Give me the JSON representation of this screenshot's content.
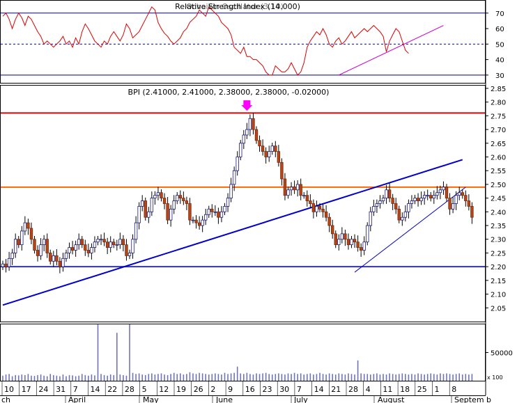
{
  "chart_data": [
    {
      "type": "line",
      "panel": "indicator",
      "title": "Relative Strength Index (14.000)",
      "title_overlay": "Ochaikin Oscillator (3,10)",
      "ylim": [
        25,
        78
      ],
      "yticks": [
        30,
        40,
        50,
        60,
        70
      ],
      "reference_lines": [
        {
          "value": 70,
          "color": "#000080",
          "style": "solid"
        },
        {
          "value": 50,
          "color": "#0000cc",
          "style": "dashed"
        },
        {
          "value": 30,
          "color": "#000080",
          "style": "solid"
        }
      ],
      "series": [
        {
          "color": "#dd0000",
          "values": [
            68,
            70,
            66,
            60,
            66,
            70,
            67,
            62,
            68,
            66,
            62,
            58,
            55,
            50,
            52,
            50,
            48,
            50,
            52,
            55,
            50,
            52,
            48,
            54,
            50,
            58,
            63,
            60,
            56,
            52,
            50,
            48,
            52,
            50,
            55,
            58,
            55,
            52,
            56,
            63,
            60,
            54,
            56,
            58,
            62,
            66,
            70,
            74,
            72,
            64,
            60,
            57,
            55,
            52,
            50,
            52,
            54,
            58,
            60,
            64,
            66,
            68,
            72,
            70,
            68,
            74,
            72,
            70,
            68,
            64,
            62,
            60,
            56,
            48,
            46,
            44,
            48,
            42,
            42,
            40,
            40,
            38,
            36,
            32,
            30,
            30,
            36,
            34,
            32,
            32,
            34,
            38,
            34,
            30,
            32,
            38,
            48,
            52,
            55,
            58,
            56,
            60,
            56,
            50,
            48,
            52,
            54,
            50,
            52,
            55,
            58,
            54,
            56,
            58,
            60,
            58,
            60,
            62,
            60,
            58,
            55,
            45,
            52,
            56,
            60,
            58,
            52,
            46,
            44
          ]
        }
      ],
      "trendlines": [
        {
          "from": [
            106,
            30
          ],
          "to": [
            139,
            62
          ],
          "color": "#cc00cc"
        }
      ],
      "grid": false
    },
    {
      "type": "candlestick",
      "panel": "price",
      "title": "BPI (2.41000, 2.41000, 2.38000, 2.38000, -0.02000)",
      "ylim": [
        2.0,
        2.86
      ],
      "yticks": [
        "2.05",
        "2.10",
        "2.15",
        "2.20",
        "2.25",
        "2.30",
        "2.35",
        "2.40",
        "2.45",
        "2.50",
        "2.55",
        "2.60",
        "2.65",
        "2.70",
        "2.75",
        "2.80",
        "2.85"
      ],
      "x_tick_labels": [
        "10",
        "17",
        "24",
        "31",
        "7",
        "14",
        "22",
        "28",
        "5",
        "12",
        "19",
        "26",
        "2",
        "9",
        "16",
        "23",
        "30",
        "7",
        "14",
        "21",
        "28",
        "4",
        "11",
        "18",
        "25",
        "1",
        "8"
      ],
      "month_labels": [
        "ch",
        "April",
        "May",
        "June",
        "July",
        "August",
        "Septem b"
      ],
      "horizontal_lines": [
        {
          "value": 2.76,
          "color": "#dd0000"
        },
        {
          "value": 2.49,
          "color": "#ff6600"
        },
        {
          "value": 2.2,
          "color": "#3333aa"
        }
      ],
      "trendlines": [
        {
          "from": [
            0,
            2.06
          ],
          "to": [
            145,
            2.59
          ],
          "color": "#0000cc",
          "width": 2
        },
        {
          "from": [
            111,
            2.18
          ],
          "to": [
            146,
            2.49
          ],
          "color": "#0000cc",
          "width": 1
        }
      ],
      "marker": {
        "symbol": "down-arrow",
        "color": "#ff00ff",
        "at_index": 77
      },
      "closes": [
        2.21,
        2.2,
        2.23,
        2.25,
        2.3,
        2.28,
        2.33,
        2.36,
        2.34,
        2.3,
        2.26,
        2.24,
        2.28,
        2.3,
        2.25,
        2.22,
        2.24,
        2.22,
        2.2,
        2.23,
        2.25,
        2.27,
        2.26,
        2.28,
        2.3,
        2.28,
        2.26,
        2.25,
        2.27,
        2.29,
        2.3,
        2.3,
        2.29,
        2.27,
        2.29,
        2.28,
        2.28,
        2.3,
        2.28,
        2.24,
        2.25,
        2.3,
        2.36,
        2.42,
        2.44,
        2.38,
        2.4,
        2.45,
        2.46,
        2.47,
        2.45,
        2.43,
        2.37,
        2.41,
        2.44,
        2.46,
        2.45,
        2.44,
        2.43,
        2.37,
        2.37,
        2.36,
        2.35,
        2.37,
        2.39,
        2.41,
        2.4,
        2.4,
        2.38,
        2.4,
        2.42,
        2.45,
        2.5,
        2.55,
        2.6,
        2.65,
        2.68,
        2.7,
        2.74,
        2.7,
        2.66,
        2.64,
        2.62,
        2.6,
        2.62,
        2.64,
        2.62,
        2.58,
        2.52,
        2.46,
        2.48,
        2.49,
        2.48,
        2.5,
        2.46,
        2.46,
        2.44,
        2.43,
        2.4,
        2.42,
        2.41,
        2.4,
        2.38,
        2.35,
        2.32,
        2.28,
        2.3,
        2.32,
        2.3,
        2.28,
        2.3,
        2.29,
        2.27,
        2.26,
        2.29,
        2.35,
        2.4,
        2.42,
        2.43,
        2.44,
        2.45,
        2.48,
        2.45,
        2.43,
        2.41,
        2.37,
        2.38,
        2.4,
        2.43,
        2.44,
        2.45,
        2.44,
        2.45,
        2.46,
        2.46,
        2.45,
        2.46,
        2.47,
        2.48,
        2.49,
        2.45,
        2.41,
        2.43,
        2.46,
        2.47,
        2.46,
        2.44,
        2.42,
        2.38
      ]
    },
    {
      "type": "bar",
      "panel": "volume",
      "ylim": [
        0,
        100000
      ],
      "yticks": [
        50000
      ],
      "unit_label": "x 100",
      "values": [
        9000,
        11000,
        12000,
        8000,
        10000,
        9500,
        11000,
        10000,
        12000,
        9000,
        8500,
        10000,
        11000,
        9000,
        8000,
        12000,
        10000,
        9000,
        8000,
        11000,
        8000,
        10000,
        9500,
        8000,
        9000,
        12000,
        10000,
        9000,
        11000,
        9500,
        100000,
        12000,
        10000,
        9000,
        11000,
        10000,
        85000,
        11000,
        10000,
        9000,
        100000,
        14000,
        12000,
        13000,
        11000,
        10000,
        12000,
        13000,
        11000,
        12000,
        13000,
        11000,
        10000,
        12000,
        14000,
        12000,
        13000,
        11000,
        12000,
        15000,
        13000,
        12000,
        14000,
        13000,
        12000,
        11000,
        12000,
        13000,
        12000,
        11000,
        14000,
        12000,
        13000,
        14000,
        25000,
        13000,
        12000,
        14000,
        12000,
        11000,
        13000,
        12000,
        13000,
        14000,
        12000,
        11000,
        12000,
        13000,
        12000,
        11000,
        13000,
        12000,
        14000,
        12000,
        13000,
        11000,
        12000,
        13000,
        11000,
        12000,
        14000,
        12000,
        11000,
        13000,
        12000,
        11000,
        13000,
        12000,
        11000,
        13000,
        12000,
        11000,
        36000,
        13000,
        12000,
        12000,
        11000,
        12000,
        13000,
        11000,
        12000,
        11000,
        13000,
        12000,
        11000,
        12000,
        13000,
        12000,
        11000,
        12000,
        11000,
        13000,
        12000,
        11000,
        12000,
        13000,
        12000,
        11000,
        13000,
        12000,
        13000,
        12000,
        11000,
        12000,
        13000,
        11000,
        12000,
        11000,
        12000
      ]
    }
  ]
}
